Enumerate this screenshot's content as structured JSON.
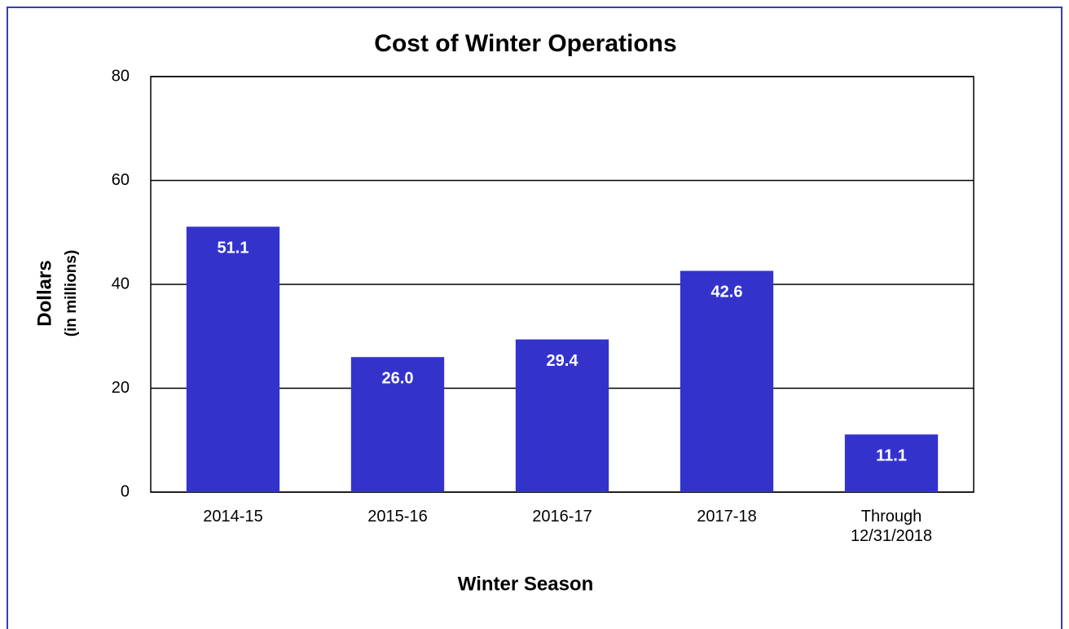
{
  "chart_data": {
    "type": "bar",
    "title": "Cost of Winter Operations",
    "x_label": "Winter Season",
    "y_label": "Dollars",
    "y_label_sub": "(in millions)",
    "categories": [
      "2014-15",
      "2015-16",
      "2016-17",
      "2017-18",
      "Through 12/31/2018"
    ],
    "values": [
      51.1,
      26.0,
      29.4,
      42.6,
      11.1
    ],
    "value_labels": [
      "51.1",
      "26.0",
      "29.4",
      "42.6",
      "11.1"
    ],
    "color": "#3333cc",
    "ylim": [
      0,
      80
    ],
    "yticks": [
      0,
      20,
      40,
      60,
      80
    ],
    "grid": true
  }
}
